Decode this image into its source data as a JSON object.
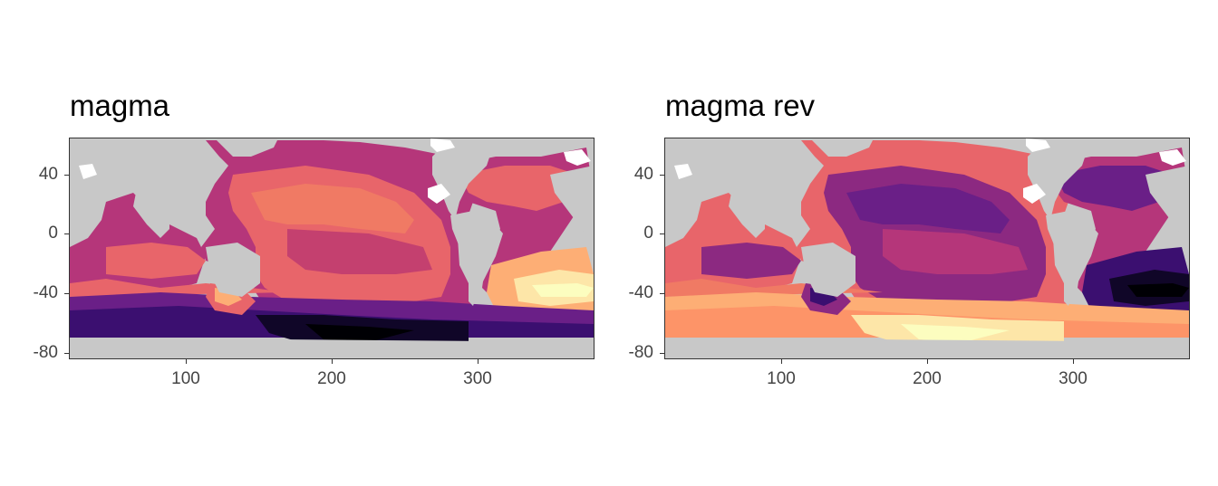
{
  "panels": [
    {
      "title": "magma",
      "palette": "magma",
      "y_ticks": [
        "40",
        "0",
        "-40",
        "-80"
      ],
      "x_ticks": [
        "100",
        "200",
        "300"
      ]
    },
    {
      "title": "magma rev",
      "palette": "magma-reversed",
      "y_ticks": [
        "40",
        "0",
        "-40",
        "-80"
      ],
      "x_ticks": [
        "100",
        "200",
        "300"
      ]
    }
  ],
  "colors": {
    "land": "#c8c8c8",
    "missing": "#ffffff",
    "magma_scale": [
      "#000004",
      "#3b0f70",
      "#8c2981",
      "#de4968",
      "#fe9f6d",
      "#fcfdbf"
    ]
  },
  "map_extent": {
    "x_range": [
      20,
      380
    ],
    "y_range": [
      -85,
      65
    ]
  }
}
